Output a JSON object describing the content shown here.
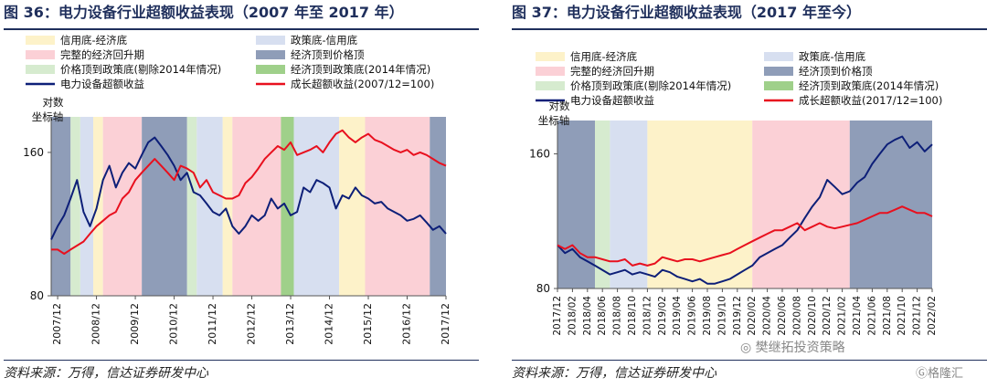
{
  "colors": {
    "credit_bottom": "#fdf2c9",
    "policy_bottom": "#d7dff0",
    "full_recovery": "#fbd0d6",
    "econ_top_to_price_top": "#8f9db8",
    "price_top_to_policy_bottom": "#d6ebcf",
    "econ_top_to_policy_bottom_2014": "#9fd08a",
    "power_equipment_line": "#0d1f78",
    "growth_line": "#e8101e",
    "title": "#1f2f5c"
  },
  "legend": {
    "credit_bottom": "信用底-经济底",
    "policy_bottom": "政策底-信用底",
    "full_recovery": "完整的经济回升期",
    "econ_top_to_price_top": "经济顶到价格顶",
    "price_top_to_policy_bottom": "价格顶到政策底(剔除2014年情况)",
    "econ_top_to_policy_bottom_2014": "经济顶到政策底(2014年情况)",
    "power_equipment": "电力设备超额收益"
  },
  "chart_data": [
    {
      "type": "line",
      "figure_title": "图 36：电力设备行业超额收益表现（2007 年至 2017 年）",
      "y_axis_title": [
        "对数",
        "坐标轴"
      ],
      "yscale": "log",
      "yticks": [
        80,
        160
      ],
      "ylim": [
        80,
        190
      ],
      "xlim": [
        "2007/10",
        "2017/12"
      ],
      "xticks": [
        "2007/12",
        "2008/12",
        "2009/12",
        "2010/12",
        "2011/12",
        "2012/12",
        "2013/12",
        "2014/12",
        "2015/12",
        "2016/12",
        "2017/12"
      ],
      "growth_legend": "成长超额收益(2007/12=100)",
      "source": "资料来源：万得，信达证券研发中心",
      "regions": [
        {
          "kind": "econ_top_to_price_top",
          "start": "2007/10",
          "end": "2008/04"
        },
        {
          "kind": "price_top_to_policy_bottom",
          "start": "2008/04",
          "end": "2008/07"
        },
        {
          "kind": "policy_bottom",
          "start": "2008/07",
          "end": "2008/11"
        },
        {
          "kind": "credit_bottom",
          "start": "2008/11",
          "end": "2009/02"
        },
        {
          "kind": "full_recovery",
          "start": "2009/02",
          "end": "2010/02"
        },
        {
          "kind": "econ_top_to_price_top",
          "start": "2010/02",
          "end": "2011/04"
        },
        {
          "kind": "price_top_to_policy_bottom",
          "start": "2011/04",
          "end": "2011/07"
        },
        {
          "kind": "policy_bottom",
          "start": "2011/07",
          "end": "2012/03"
        },
        {
          "kind": "credit_bottom",
          "start": "2012/03",
          "end": "2012/06"
        },
        {
          "kind": "full_recovery",
          "start": "2012/06",
          "end": "2013/09"
        },
        {
          "kind": "econ_top_to_policy_bottom_2014",
          "start": "2013/09",
          "end": "2014/01"
        },
        {
          "kind": "policy_bottom",
          "start": "2014/01",
          "end": "2015/03"
        },
        {
          "kind": "credit_bottom",
          "start": "2015/03",
          "end": "2015/11"
        },
        {
          "kind": "full_recovery",
          "start": "2015/11",
          "end": "2017/07"
        },
        {
          "kind": "econ_top_to_price_top",
          "start": "2017/07",
          "end": "2017/12"
        }
      ],
      "series": [
        {
          "name": "电力设备超额收益",
          "key": "power_equipment",
          "x": [
            "2007/10",
            "2007/12",
            "2008/02",
            "2008/04",
            "2008/06",
            "2008/08",
            "2008/10",
            "2008/12",
            "2009/02",
            "2009/04",
            "2009/06",
            "2009/08",
            "2009/10",
            "2009/12",
            "2010/02",
            "2010/04",
            "2010/06",
            "2010/08",
            "2010/10",
            "2010/12",
            "2011/02",
            "2011/04",
            "2011/06",
            "2011/08",
            "2011/10",
            "2011/12",
            "2012/02",
            "2012/04",
            "2012/06",
            "2012/08",
            "2012/10",
            "2012/12",
            "2013/02",
            "2013/04",
            "2013/06",
            "2013/08",
            "2013/10",
            "2013/12",
            "2014/02",
            "2014/04",
            "2014/06",
            "2014/08",
            "2014/10",
            "2014/12",
            "2015/02",
            "2015/04",
            "2015/06",
            "2015/08",
            "2015/10",
            "2015/12",
            "2016/02",
            "2016/04",
            "2016/06",
            "2016/08",
            "2016/10",
            "2016/12",
            "2017/02",
            "2017/04",
            "2017/06",
            "2017/08",
            "2017/10",
            "2017/12"
          ],
          "values": [
            105,
            112,
            118,
            128,
            140,
            120,
            112,
            122,
            140,
            150,
            135,
            145,
            152,
            148,
            158,
            168,
            172,
            165,
            158,
            150,
            140,
            145,
            132,
            130,
            125,
            120,
            118,
            122,
            112,
            108,
            112,
            118,
            115,
            118,
            128,
            122,
            125,
            118,
            120,
            135,
            132,
            140,
            138,
            135,
            122,
            130,
            128,
            135,
            130,
            128,
            125,
            126,
            122,
            120,
            118,
            115,
            116,
            118,
            114,
            110,
            112,
            108
          ]
        },
        {
          "name": "成长超额收益(2007/12=100)",
          "key": "growth",
          "x": [
            "2007/10",
            "2007/12",
            "2008/02",
            "2008/04",
            "2008/06",
            "2008/08",
            "2008/10",
            "2008/12",
            "2009/02",
            "2009/04",
            "2009/06",
            "2009/08",
            "2009/10",
            "2009/12",
            "2010/02",
            "2010/04",
            "2010/06",
            "2010/08",
            "2010/10",
            "2010/12",
            "2011/02",
            "2011/04",
            "2011/06",
            "2011/08",
            "2011/10",
            "2011/12",
            "2012/02",
            "2012/04",
            "2012/06",
            "2012/08",
            "2012/10",
            "2012/12",
            "2013/02",
            "2013/04",
            "2013/06",
            "2013/08",
            "2013/10",
            "2013/12",
            "2014/02",
            "2014/04",
            "2014/06",
            "2014/08",
            "2014/10",
            "2014/12",
            "2015/02",
            "2015/04",
            "2015/06",
            "2015/08",
            "2015/10",
            "2015/12",
            "2016/02",
            "2016/04",
            "2016/06",
            "2016/08",
            "2016/10",
            "2016/12",
            "2017/02",
            "2017/04",
            "2017/06",
            "2017/08",
            "2017/10",
            "2017/12"
          ],
          "values": [
            100,
            100,
            98,
            100,
            102,
            104,
            108,
            112,
            115,
            118,
            120,
            128,
            132,
            140,
            145,
            150,
            155,
            150,
            145,
            140,
            150,
            148,
            145,
            135,
            140,
            132,
            130,
            128,
            128,
            130,
            138,
            142,
            148,
            155,
            160,
            165,
            162,
            168,
            158,
            160,
            162,
            165,
            160,
            168,
            175,
            178,
            172,
            168,
            172,
            175,
            170,
            168,
            165,
            162,
            160,
            162,
            158,
            160,
            158,
            155,
            152,
            150
          ]
        }
      ]
    },
    {
      "type": "line",
      "figure_title": "图 37：电力设备行业超额收益表现（2017 年至今）",
      "y_axis_title": [
        "对数",
        "坐标轴"
      ],
      "yscale": "log",
      "yticks": [
        80,
        160
      ],
      "ylim": [
        80,
        190
      ],
      "xlim": [
        "2017/12",
        "2022/02"
      ],
      "xticks": [
        "2017/12",
        "2018/02",
        "2018/04",
        "2018/06",
        "2018/08",
        "2018/10",
        "2018/12",
        "2019/02",
        "2019/04",
        "2019/06",
        "2019/08",
        "2019/10",
        "2019/12",
        "2020/02",
        "2020/04",
        "2020/06",
        "2020/08",
        "2020/10",
        "2020/12",
        "2021/02",
        "2021/04",
        "2021/06",
        "2021/08",
        "2021/10",
        "2021/12",
        "2022/02"
      ],
      "growth_legend": "成长超额收益(2017/12=100)",
      "source": "资料来源：万得，信达证券研发中心",
      "regions": [
        {
          "kind": "econ_top_to_price_top",
          "start": "2017/12",
          "end": "2018/05"
        },
        {
          "kind": "price_top_to_policy_bottom",
          "start": "2018/05",
          "end": "2018/07"
        },
        {
          "kind": "policy_bottom",
          "start": "2018/07",
          "end": "2018/12"
        },
        {
          "kind": "credit_bottom",
          "start": "2018/12",
          "end": "2020/02"
        },
        {
          "kind": "full_recovery",
          "start": "2020/02",
          "end": "2021/03"
        },
        {
          "kind": "econ_top_to_price_top",
          "start": "2021/03",
          "end": "2022/02"
        }
      ],
      "series": [
        {
          "name": "电力设备超额收益",
          "key": "power_equipment",
          "x": [
            "2017/12",
            "2018/01",
            "2018/02",
            "2018/03",
            "2018/04",
            "2018/05",
            "2018/06",
            "2018/07",
            "2018/08",
            "2018/09",
            "2018/10",
            "2018/11",
            "2018/12",
            "2019/01",
            "2019/02",
            "2019/03",
            "2019/04",
            "2019/05",
            "2019/06",
            "2019/07",
            "2019/08",
            "2019/09",
            "2019/10",
            "2019/11",
            "2019/12",
            "2020/01",
            "2020/02",
            "2020/03",
            "2020/04",
            "2020/05",
            "2020/06",
            "2020/07",
            "2020/08",
            "2020/09",
            "2020/10",
            "2020/11",
            "2020/12",
            "2021/01",
            "2021/02",
            "2021/03",
            "2021/04",
            "2021/05",
            "2021/06",
            "2021/07",
            "2021/08",
            "2021/09",
            "2021/10",
            "2021/11",
            "2021/12",
            "2022/01",
            "2022/02"
          ],
          "values": [
            100,
            96,
            98,
            94,
            92,
            90,
            88,
            86,
            87,
            88,
            86,
            87,
            86,
            85,
            88,
            87,
            85,
            84,
            83,
            84,
            82,
            82,
            83,
            84,
            86,
            88,
            90,
            94,
            96,
            98,
            100,
            104,
            108,
            115,
            122,
            128,
            140,
            135,
            130,
            132,
            138,
            142,
            152,
            160,
            168,
            172,
            175,
            165,
            170,
            162,
            168
          ]
        },
        {
          "name": "成长超额收益(2017/12=100)",
          "key": "growth",
          "x": [
            "2017/12",
            "2018/01",
            "2018/02",
            "2018/03",
            "2018/04",
            "2018/05",
            "2018/06",
            "2018/07",
            "2018/08",
            "2018/09",
            "2018/10",
            "2018/11",
            "2018/12",
            "2019/01",
            "2019/02",
            "2019/03",
            "2019/04",
            "2019/05",
            "2019/06",
            "2019/07",
            "2019/08",
            "2019/09",
            "2019/10",
            "2019/11",
            "2019/12",
            "2020/01",
            "2020/02",
            "2020/03",
            "2020/04",
            "2020/05",
            "2020/06",
            "2020/07",
            "2020/08",
            "2020/09",
            "2020/10",
            "2020/11",
            "2020/12",
            "2021/01",
            "2021/02",
            "2021/03",
            "2021/04",
            "2021/05",
            "2021/06",
            "2021/07",
            "2021/08",
            "2021/09",
            "2021/10",
            "2021/11",
            "2021/12",
            "2022/01",
            "2022/02"
          ],
          "values": [
            100,
            98,
            100,
            96,
            94,
            94,
            93,
            92,
            92,
            93,
            90,
            91,
            90,
            91,
            94,
            93,
            92,
            93,
            93,
            92,
            93,
            94,
            95,
            96,
            98,
            100,
            102,
            104,
            106,
            108,
            108,
            110,
            112,
            108,
            110,
            112,
            110,
            109,
            110,
            111,
            112,
            114,
            116,
            118,
            118,
            120,
            122,
            120,
            118,
            118,
            116
          ]
        }
      ]
    }
  ],
  "watermark": {
    "brand": "樊继拓投资策略",
    "platform": "格隆汇"
  }
}
